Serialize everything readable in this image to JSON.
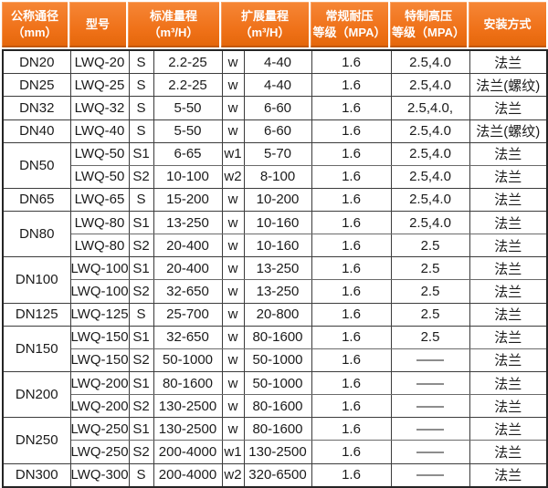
{
  "colors": {
    "header_bg": "#ef7118",
    "header_text": "#ffffff",
    "border_strong": "#252525",
    "border_inner": "#6b6b6b",
    "body_text": "#1b1b1b",
    "row_bg": "#ffffff"
  },
  "header": {
    "nominal_diameter": {
      "line1": "公称通径",
      "line2": "（mm）"
    },
    "model": {
      "line1": "型号",
      "line2": ""
    },
    "standard_range": {
      "line1": "标准量程",
      "line2": "（m³/H）"
    },
    "extended_range": {
      "line1": "扩展量程",
      "line2": "（m³/H）"
    },
    "normal_pressure": {
      "line1": "常规耐压",
      "line2": "等级（MPA）"
    },
    "high_pressure": {
      "line1": "特制高压",
      "line2": "等级（MPA）"
    },
    "install": {
      "line1": "安装方式",
      "line2": ""
    }
  },
  "rows": [
    {
      "dn": "DN20",
      "dn_span": 1,
      "model": "LWQ-20",
      "s": "S",
      "std": "2.2-25",
      "w": "w",
      "ext": "4-40",
      "mpa": "1.6",
      "high": "2.5,4.0",
      "install": "法兰"
    },
    {
      "dn": "DN25",
      "dn_span": 1,
      "model": "LWQ-25",
      "s": "S",
      "std": "2.2-25",
      "w": "w",
      "ext": "4-40",
      "mpa": "1.6",
      "high": "2.5,4.0",
      "install": "法兰(螺纹)"
    },
    {
      "dn": "DN32",
      "dn_span": 1,
      "model": "LWQ-32",
      "s": "S",
      "std": "5-50",
      "w": "w",
      "ext": "6-60",
      "mpa": "1.6",
      "high": "2.5,4.0,",
      "install": "法兰"
    },
    {
      "dn": "DN40",
      "dn_span": 1,
      "model": "LWQ-40",
      "s": "S",
      "std": "5-50",
      "w": "w",
      "ext": "6-60",
      "mpa": "1.6",
      "high": "2.5,4.0",
      "install": "法兰(螺纹)"
    },
    {
      "dn": "DN50",
      "dn_span": 2,
      "model": "LWQ-50",
      "s": "S1",
      "std": "6-65",
      "w": "w1",
      "ext": "5-70",
      "mpa": "1.6",
      "high": "2.5,4.0",
      "install": "法兰"
    },
    {
      "model": "LWQ-50",
      "s": "S2",
      "std": "10-100",
      "w": "w2",
      "ext": "8-100",
      "mpa": "1.6",
      "high": "2.5,4.0",
      "install": "法兰"
    },
    {
      "dn": "DN65",
      "dn_span": 1,
      "model": "LWQ-65",
      "s": "S",
      "std": "15-200",
      "w": "w",
      "ext": "10-200",
      "mpa": "1.6",
      "high": "2.5,4.0",
      "install": "法兰"
    },
    {
      "dn": "DN80",
      "dn_span": 2,
      "model": "LWQ-80",
      "s": "S1",
      "std": "13-250",
      "w": "w",
      "ext": "10-160",
      "mpa": "1.6",
      "high": "2.5,4.0",
      "install": "法兰"
    },
    {
      "model": "LWQ-80",
      "s": "S2",
      "std": "20-400",
      "w": "w",
      "ext": "10-160",
      "mpa": "1.6",
      "high": "2.5",
      "install": "法兰"
    },
    {
      "dn": "DN100",
      "dn_span": 2,
      "model": "LWQ-100",
      "s": "S1",
      "std": "20-400",
      "w": "w",
      "ext": "13-250",
      "mpa": "1.6",
      "high": "2.5",
      "install": "法兰"
    },
    {
      "model": "LWQ-100",
      "s": "S2",
      "std": "32-650",
      "w": "w",
      "ext": "13-250",
      "mpa": "1.6",
      "high": "2.5",
      "install": "法兰"
    },
    {
      "dn": "DN125",
      "dn_span": 1,
      "model": "LWQ-125",
      "s": "S",
      "std": "25-700",
      "w": "w",
      "ext": "20-800",
      "mpa": "1.6",
      "high": "2.5",
      "install": "法兰"
    },
    {
      "dn": "DN150",
      "dn_span": 2,
      "model": "LWQ-150",
      "s": "S1",
      "std": "32-650",
      "w": "w",
      "ext": "80-1600",
      "mpa": "1.6",
      "high": "2.5",
      "install": "法兰"
    },
    {
      "model": "LWQ-150",
      "s": "S2",
      "std": "50-1000",
      "w": "w",
      "ext": "50-1000",
      "mpa": "1.6",
      "high": "——",
      "install": "法兰"
    },
    {
      "dn": "DN200",
      "dn_span": 2,
      "model": "LWQ-200",
      "s": "S1",
      "std": "80-1600",
      "w": "w",
      "ext": "50-1000",
      "mpa": "1.6",
      "high": "——",
      "install": "法兰"
    },
    {
      "model": "LWQ-200",
      "s": "S2",
      "std": "130-2500",
      "w": "w",
      "ext": "80-1600",
      "mpa": "1.6",
      "high": "——",
      "install": "法兰"
    },
    {
      "dn": "DN250",
      "dn_span": 2,
      "model": "LWQ-250",
      "s": "S1",
      "std": "130-2500",
      "w": "w",
      "ext": "80-1600",
      "mpa": "1.6",
      "high": "——",
      "install": "法兰"
    },
    {
      "model": "LWQ-250",
      "s": "S2",
      "std": "200-4000",
      "w": "w1",
      "ext": "130-2500",
      "mpa": "1.6",
      "high": "——",
      "install": "法兰"
    },
    {
      "dn": "DN300",
      "dn_span": 1,
      "model": "LWQ-300",
      "s": "S",
      "std": "200-4000",
      "w": "w2",
      "ext": "320-6500",
      "mpa": "1.6",
      "high": "——",
      "install": "法兰"
    }
  ]
}
